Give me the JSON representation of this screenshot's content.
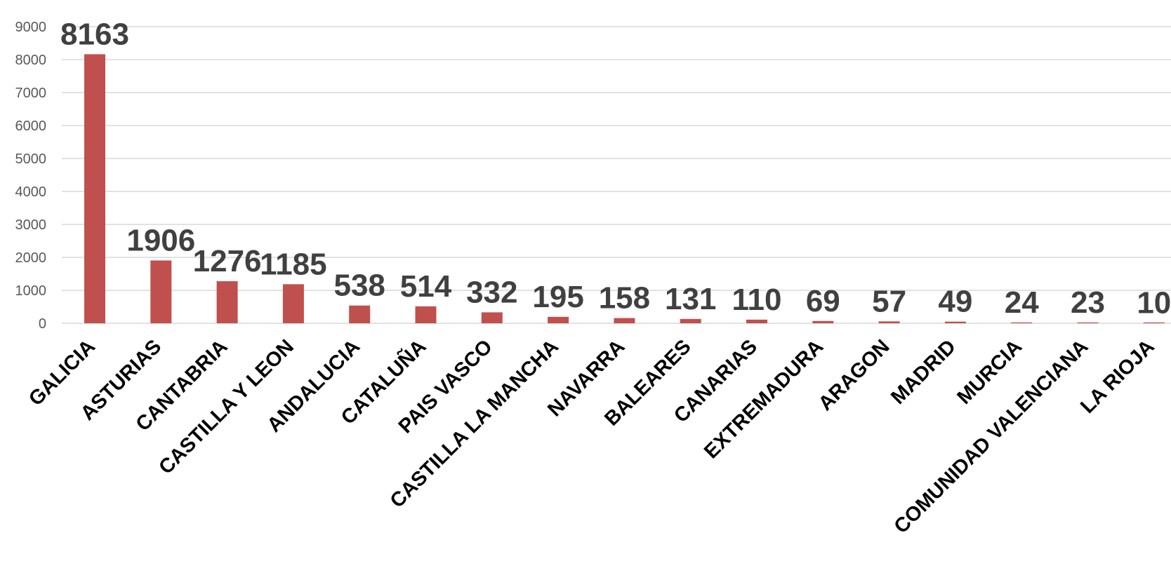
{
  "chart_data": {
    "type": "bar",
    "categories": [
      "GALICIA",
      "ASTURIAS",
      "CANTABRIA",
      "CASTILLA Y LEON",
      "ANDALUCIA",
      "CATALUÑA",
      "PAIS VASCO",
      "CASTILLA LA MANCHA",
      "NAVARRA",
      "BALEARES",
      "CANARIAS",
      "EXTREMADURA",
      "ARAGON",
      "MADRID",
      "MURCIA",
      "COMUNIDAD VALENCIANA",
      "LA RIOJA"
    ],
    "values": [
      8163,
      1906,
      1276,
      1185,
      538,
      514,
      332,
      195,
      158,
      131,
      110,
      69,
      57,
      49,
      24,
      23,
      10
    ],
    "data_labels": [
      "8163",
      "1906",
      "1276",
      "1185",
      "538",
      "514",
      "332",
      "195",
      "158",
      "131",
      "110",
      "69",
      "57",
      "49",
      "24",
      "23",
      "10"
    ],
    "title": "",
    "xlabel": "",
    "ylabel": "",
    "ylim": [
      0,
      9000
    ],
    "yticks": [
      "0",
      "1000",
      "2000",
      "3000",
      "4000",
      "5000",
      "6000",
      "7000",
      "8000",
      "9000"
    ],
    "grid": true,
    "legend": "none",
    "colors": {
      "bar": "#c0504d",
      "grid": "#d9d9d9",
      "tick_text": "#595959",
      "data_label": "#404040",
      "category_text": "#000000"
    }
  }
}
